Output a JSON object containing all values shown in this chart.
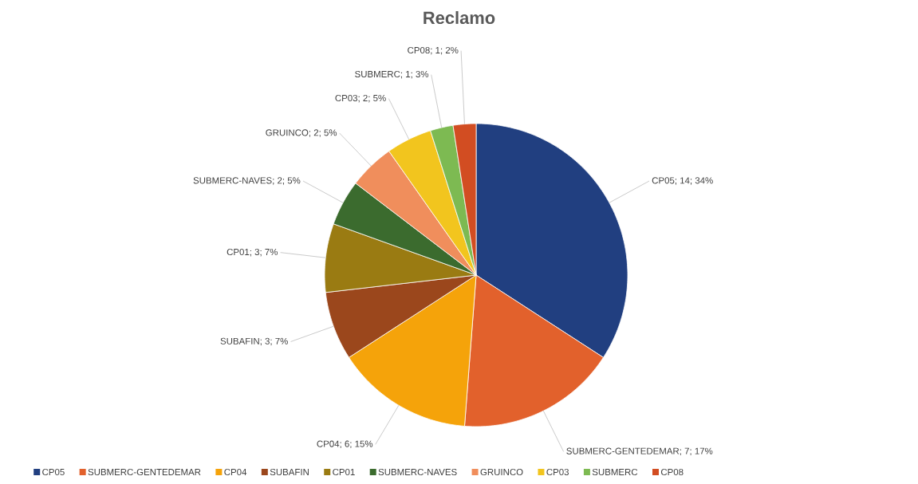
{
  "chart_data": {
    "type": "pie",
    "title": "Reclamo",
    "categories": [
      "CP05",
      "SUBMERC-GENTEDEMAR",
      "CP04",
      "SUBAFIN",
      "CP01",
      "SUBMERC-NAVES",
      "GRUINCO",
      "CP03",
      "SUBMERC",
      "CP08"
    ],
    "values": [
      14,
      7,
      6,
      3,
      3,
      2,
      2,
      2,
      1,
      1
    ],
    "value_labels": [
      "CP05; 14; 34%",
      "SUBMERC-GENTEDEMAR; 7; 17%",
      "CP04; 6; 15%",
      "SUBAFIN; 3; 7%",
      "CP01; 3; 7%",
      "SUBMERC-NAVES; 2; 5%",
      "GRUINCO; 2; 5%",
      "CP03; 2; 5%",
      "SUBMERC; 1; 3%",
      "CP08; 1; 2%"
    ],
    "colors": [
      "#213f80",
      "#e2612c",
      "#f5a30a",
      "#9b471c",
      "#9a7b12",
      "#3b6b2e",
      "#f08e5c",
      "#f2c51e",
      "#7dba52",
      "#d24d22"
    ],
    "legend": "bottom"
  }
}
